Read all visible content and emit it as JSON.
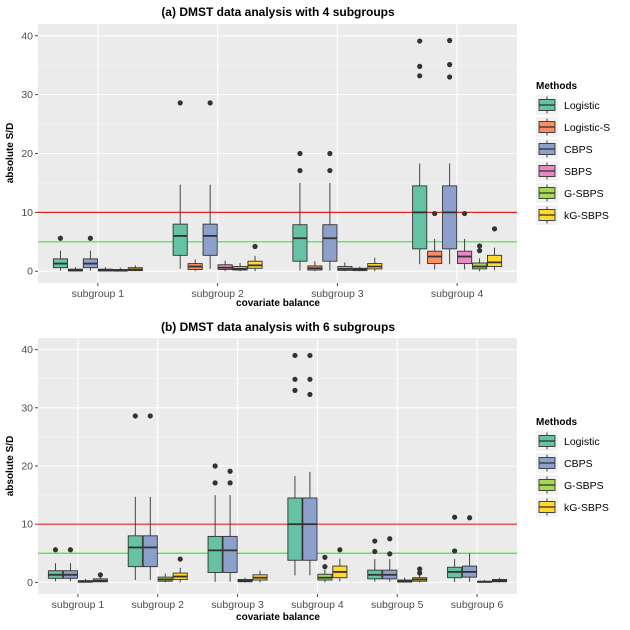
{
  "chart_data": [
    {
      "type": "boxplot",
      "title": "(a) DMST data analysis with 4 subgroups",
      "xlabel": "covariate balance",
      "ylabel": "absolute S/D",
      "ylim": [
        -2,
        42
      ],
      "yticks": [
        0,
        10,
        20,
        30,
        40
      ],
      "categories": [
        "subgroup 1",
        "subgroup 2",
        "subgroup 3",
        "subgroup 4"
      ],
      "reference_lines": [
        {
          "value": 10,
          "color": "#e8211f"
        },
        {
          "value": 5,
          "color": "#3de83b"
        }
      ],
      "legend": {
        "title": "Methods",
        "position": "right"
      },
      "series": [
        {
          "name": "Logistic",
          "color": "#66c2a5",
          "boxes": [
            {
              "min": 0.1,
              "q1": 0.6,
              "median": 1.3,
              "q3": 2.1,
              "max": 3.5,
              "outliers": [
                5.6
              ]
            },
            {
              "min": 0.4,
              "q1": 2.7,
              "median": 6.0,
              "q3": 8.0,
              "max": 14.7,
              "outliers": [
                28.6
              ]
            },
            {
              "min": 0.1,
              "q1": 1.7,
              "median": 5.6,
              "q3": 7.9,
              "max": 15.0,
              "outliers": [
                17.1,
                20.0
              ]
            },
            {
              "min": 1.2,
              "q1": 3.8,
              "median": 10.0,
              "q3": 14.5,
              "max": 18.3,
              "outliers": [
                33.2,
                34.8,
                39.1
              ]
            }
          ]
        },
        {
          "name": "Logistic-S",
          "color": "#fc8d62",
          "boxes": [
            {
              "min": 0.0,
              "q1": 0.05,
              "median": 0.15,
              "q3": 0.35,
              "max": 0.7,
              "outliers": []
            },
            {
              "min": 0.0,
              "q1": 0.3,
              "median": 0.8,
              "q3": 1.3,
              "max": 2.0,
              "outliers": []
            },
            {
              "min": 0.0,
              "q1": 0.2,
              "median": 0.5,
              "q3": 0.9,
              "max": 1.7,
              "outliers": []
            },
            {
              "min": 0.3,
              "q1": 1.3,
              "median": 2.5,
              "q3": 3.4,
              "max": 5.5,
              "outliers": [
                9.8
              ]
            }
          ]
        },
        {
          "name": "CBPS",
          "color": "#8da0cb",
          "boxes": [
            {
              "min": 0.1,
              "q1": 0.6,
              "median": 1.3,
              "q3": 2.1,
              "max": 3.5,
              "outliers": [
                5.6
              ]
            },
            {
              "min": 0.4,
              "q1": 2.7,
              "median": 6.0,
              "q3": 8.0,
              "max": 14.7,
              "outliers": [
                28.6
              ]
            },
            {
              "min": 0.1,
              "q1": 1.7,
              "median": 5.6,
              "q3": 7.9,
              "max": 15.0,
              "outliers": [
                17.1,
                20.0
              ]
            },
            {
              "min": 1.2,
              "q1": 3.8,
              "median": 10.0,
              "q3": 14.5,
              "max": 18.3,
              "outliers": [
                33.0,
                35.1,
                39.2
              ]
            }
          ]
        },
        {
          "name": "SBPS",
          "color": "#e78ac3",
          "boxes": [
            {
              "min": 0.0,
              "q1": 0.05,
              "median": 0.15,
              "q3": 0.35,
              "max": 0.7,
              "outliers": []
            },
            {
              "min": 0.0,
              "q1": 0.3,
              "median": 0.6,
              "q3": 1.1,
              "max": 1.8,
              "outliers": []
            },
            {
              "min": 0.0,
              "q1": 0.15,
              "median": 0.4,
              "q3": 0.8,
              "max": 1.5,
              "outliers": []
            },
            {
              "min": 0.3,
              "q1": 1.3,
              "median": 2.5,
              "q3": 3.4,
              "max": 5.5,
              "outliers": [
                9.8
              ]
            }
          ]
        },
        {
          "name": "G-SBPS",
          "color": "#a6d854",
          "boxes": [
            {
              "min": 0.0,
              "q1": 0.05,
              "median": 0.1,
              "q3": 0.3,
              "max": 0.6,
              "outliers": []
            },
            {
              "min": 0.0,
              "q1": 0.2,
              "median": 0.4,
              "q3": 0.8,
              "max": 1.4,
              "outliers": []
            },
            {
              "min": 0.0,
              "q1": 0.1,
              "median": 0.3,
              "q3": 0.5,
              "max": 0.8,
              "outliers": []
            },
            {
              "min": 0.0,
              "q1": 0.4,
              "median": 0.8,
              "q3": 1.4,
              "max": 2.2,
              "outliers": [
                3.5,
                4.3
              ]
            }
          ]
        },
        {
          "name": "kG-SBPS",
          "color": "#ffd92f",
          "boxes": [
            {
              "min": 0.0,
              "q1": 0.1,
              "median": 0.3,
              "q3": 0.6,
              "max": 1.0,
              "outliers": []
            },
            {
              "min": 0.0,
              "q1": 0.5,
              "median": 1.0,
              "q3": 1.7,
              "max": 2.6,
              "outliers": [
                4.2
              ]
            },
            {
              "min": 0.0,
              "q1": 0.4,
              "median": 0.8,
              "q3": 1.3,
              "max": 2.3,
              "outliers": []
            },
            {
              "min": 0.2,
              "q1": 0.8,
              "median": 1.5,
              "q3": 2.7,
              "max": 4.0,
              "outliers": [
                7.2
              ]
            }
          ]
        }
      ]
    },
    {
      "type": "boxplot",
      "title": "(b) DMST data analysis with 6 subgroups",
      "xlabel": "covariate balance",
      "ylabel": "absolute S/D",
      "ylim": [
        -2,
        42
      ],
      "yticks": [
        0,
        10,
        20,
        30,
        40
      ],
      "categories": [
        "subgroup 1",
        "subgroup 2",
        "subgroup 3",
        "subgroup 4",
        "subgroup 5",
        "subgroup 6"
      ],
      "reference_lines": [
        {
          "value": 10,
          "color": "#e8211f"
        },
        {
          "value": 5,
          "color": "#3de83b"
        }
      ],
      "legend": {
        "title": "Methods",
        "position": "right"
      },
      "series": [
        {
          "name": "Logistic",
          "color": "#66c2a5",
          "boxes": [
            {
              "min": 0.2,
              "q1": 0.7,
              "median": 1.3,
              "q3": 2.0,
              "max": 3.3,
              "outliers": [
                5.6
              ]
            },
            {
              "min": 0.4,
              "q1": 2.7,
              "median": 6.0,
              "q3": 8.0,
              "max": 14.7,
              "outliers": [
                28.6
              ]
            },
            {
              "min": 0.1,
              "q1": 1.7,
              "median": 5.5,
              "q3": 7.9,
              "max": 15.0,
              "outliers": [
                17.1,
                20.0
              ]
            },
            {
              "min": 1.2,
              "q1": 3.8,
              "median": 10.0,
              "q3": 14.5,
              "max": 18.3,
              "outliers": [
                33.0,
                34.9,
                39.0
              ]
            },
            {
              "min": 0.1,
              "q1": 0.6,
              "median": 1.3,
              "q3": 2.1,
              "max": 4.0,
              "outliers": [
                5.3,
                7.1
              ]
            },
            {
              "min": 0.1,
              "q1": 0.8,
              "median": 1.8,
              "q3": 2.6,
              "max": 4.0,
              "outliers": [
                5.4,
                11.2
              ]
            }
          ]
        },
        {
          "name": "CBPS",
          "color": "#8da0cb",
          "boxes": [
            {
              "min": 0.2,
              "q1": 0.7,
              "median": 1.3,
              "q3": 2.0,
              "max": 3.3,
              "outliers": [
                5.6
              ]
            },
            {
              "min": 0.4,
              "q1": 2.7,
              "median": 6.0,
              "q3": 8.0,
              "max": 14.7,
              "outliers": [
                28.6
              ]
            },
            {
              "min": 0.1,
              "q1": 1.7,
              "median": 5.5,
              "q3": 7.9,
              "max": 15.0,
              "outliers": [
                17.1,
                19.1
              ]
            },
            {
              "min": 1.2,
              "q1": 3.8,
              "median": 10.0,
              "q3": 14.5,
              "max": 19.0,
              "outliers": [
                32.3,
                34.9,
                39.0
              ]
            },
            {
              "min": 0.1,
              "q1": 0.6,
              "median": 1.3,
              "q3": 2.1,
              "max": 4.0,
              "outliers": [
                4.9,
                7.5
              ]
            },
            {
              "min": 0.1,
              "q1": 0.9,
              "median": 1.8,
              "q3": 2.8,
              "max": 5.0,
              "outliers": [
                11.1
              ]
            }
          ]
        },
        {
          "name": "G-SBPS",
          "color": "#a6d854",
          "boxes": [
            {
              "min": 0.0,
              "q1": 0.05,
              "median": 0.1,
              "q3": 0.3,
              "max": 0.6,
              "outliers": []
            },
            {
              "min": 0.0,
              "q1": 0.2,
              "median": 0.5,
              "q3": 0.9,
              "max": 1.5,
              "outliers": []
            },
            {
              "min": 0.0,
              "q1": 0.1,
              "median": 0.3,
              "q3": 0.5,
              "max": 0.8,
              "outliers": []
            },
            {
              "min": 0.0,
              "q1": 0.4,
              "median": 0.8,
              "q3": 1.4,
              "max": 2.2,
              "outliers": [
                2.7,
                4.3
              ]
            },
            {
              "min": 0.0,
              "q1": 0.05,
              "median": 0.2,
              "q3": 0.4,
              "max": 0.8,
              "outliers": []
            },
            {
              "min": 0.0,
              "q1": 0.02,
              "median": 0.1,
              "q3": 0.2,
              "max": 0.4,
              "outliers": []
            }
          ]
        },
        {
          "name": "kG-SBPS",
          "color": "#ffd92f",
          "boxes": [
            {
              "min": 0.0,
              "q1": 0.1,
              "median": 0.3,
              "q3": 0.6,
              "max": 1.0,
              "outliers": [
                1.3
              ]
            },
            {
              "min": 0.0,
              "q1": 0.5,
              "median": 1.0,
              "q3": 1.6,
              "max": 2.5,
              "outliers": [
                4.0
              ]
            },
            {
              "min": 0.0,
              "q1": 0.4,
              "median": 0.8,
              "q3": 1.3,
              "max": 2.0,
              "outliers": []
            },
            {
              "min": 0.2,
              "q1": 0.8,
              "median": 1.8,
              "q3": 2.8,
              "max": 4.1,
              "outliers": [
                5.6
              ]
            },
            {
              "min": 0.0,
              "q1": 0.2,
              "median": 0.5,
              "q3": 0.8,
              "max": 1.4,
              "outliers": [
                1.6,
                2.3
              ]
            },
            {
              "min": 0.0,
              "q1": 0.1,
              "median": 0.3,
              "q3": 0.5,
              "max": 0.8,
              "outliers": []
            }
          ]
        }
      ]
    }
  ]
}
